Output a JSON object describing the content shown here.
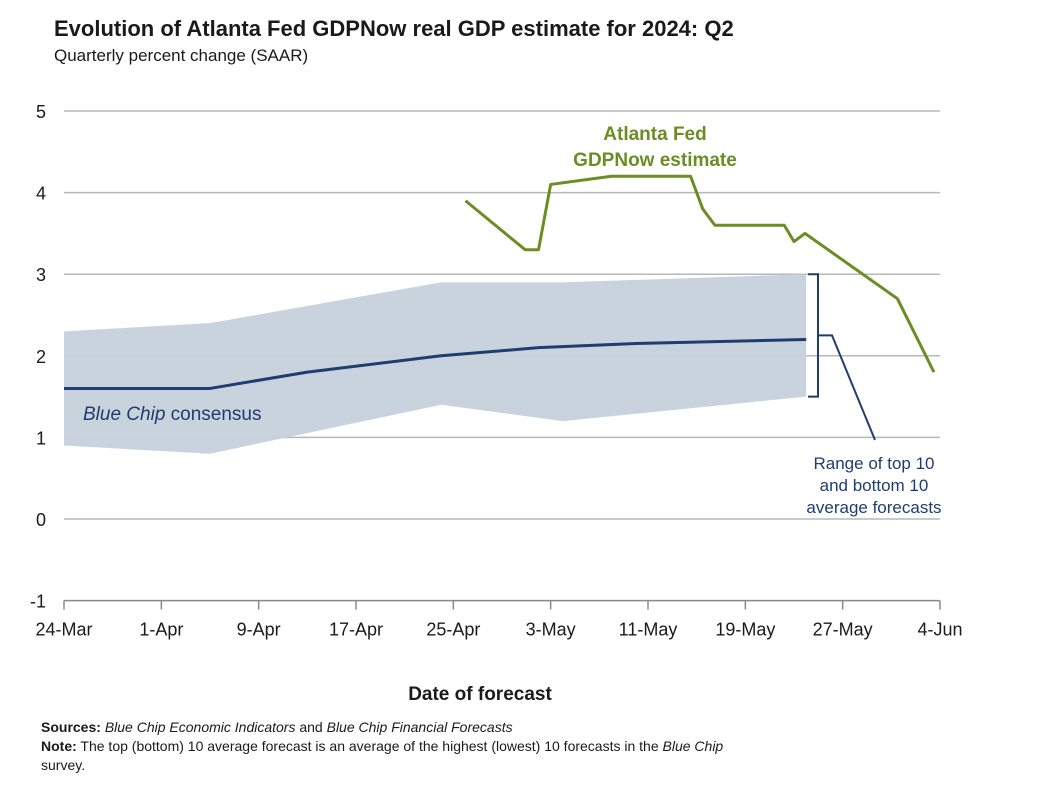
{
  "chart_data": {
    "type": "line",
    "title": "Evolution of Atlanta Fed GDPNow real GDP estimate for 2024: Q2",
    "subtitle": "Quarterly percent change (SAAR)",
    "xlabel": "Date of forecast",
    "ylabel": "",
    "ylim": [
      -1,
      5
    ],
    "yticks": [
      "5",
      "4",
      "3",
      "2",
      "1",
      "0",
      "-1"
    ],
    "xlim_days": [
      0,
      72
    ],
    "xticks": [
      {
        "day": 0,
        "label": "24-Mar"
      },
      {
        "day": 8,
        "label": "1-Apr"
      },
      {
        "day": 16,
        "label": "9-Apr"
      },
      {
        "day": 24,
        "label": "17-Apr"
      },
      {
        "day": 32,
        "label": "25-Apr"
      },
      {
        "day": 40,
        "label": "3-May"
      },
      {
        "day": 48,
        "label": "11-May"
      },
      {
        "day": 56,
        "label": "19-May"
      },
      {
        "day": 64,
        "label": "27-May"
      },
      {
        "day": 72,
        "label": "4-Jun"
      }
    ],
    "series": [
      {
        "name": "GDPNow",
        "color": "#6b8e23",
        "points": [
          [
            33.0,
            3.9
          ],
          [
            37.9,
            3.3
          ],
          [
            39.0,
            3.3
          ],
          [
            40.0,
            4.1
          ],
          [
            45.0,
            4.2
          ],
          [
            51.5,
            4.2
          ],
          [
            52.5,
            3.8
          ],
          [
            53.5,
            3.6
          ],
          [
            59.2,
            3.6
          ],
          [
            60.0,
            3.4
          ],
          [
            60.9,
            3.5
          ],
          [
            68.5,
            2.7
          ],
          [
            71.5,
            1.8
          ]
        ]
      },
      {
        "name": "Blue Chip consensus",
        "color": "#1f3d6e",
        "points": [
          [
            0,
            1.6
          ],
          [
            12,
            1.6
          ],
          [
            20,
            1.8
          ],
          [
            31,
            2.0
          ],
          [
            39,
            2.1
          ],
          [
            47,
            2.15
          ],
          [
            61,
            2.2
          ]
        ]
      }
    ],
    "band": {
      "name": "Range of top 10 and bottom 10 average forecasts",
      "color": "#c6d1dc",
      "upper": [
        [
          0,
          2.3
        ],
        [
          12,
          2.4
        ],
        [
          31,
          2.9
        ],
        [
          41,
          2.9
        ],
        [
          61,
          3.0
        ]
      ],
      "lower": [
        [
          0,
          0.9
        ],
        [
          12,
          0.8
        ],
        [
          31,
          1.4
        ],
        [
          41,
          1.2
        ],
        [
          61,
          1.5
        ]
      ]
    },
    "annotations": {
      "gdpnow_label": [
        "Atlanta Fed",
        "GDPNow estimate"
      ],
      "bluechip_label_italic": "Blue Chip",
      "bluechip_label_rest": " consensus",
      "range_label": [
        "Range of top 10",
        "and bottom 10",
        "average forecasts"
      ]
    }
  },
  "notes": {
    "sources_label": "Sources:",
    "sources_italic_1": "Blue Chip Economic Indicators",
    "sources_and": " and ",
    "sources_italic_2": "Blue Chip Financial Forecasts",
    "note_label": "Note:",
    "note_text_1": " The top (bottom) 10 average forecast is an average of the highest (lowest) 10 forecasts in the ",
    "note_italic": "Blue Chip",
    "note_text_2": "survey."
  }
}
